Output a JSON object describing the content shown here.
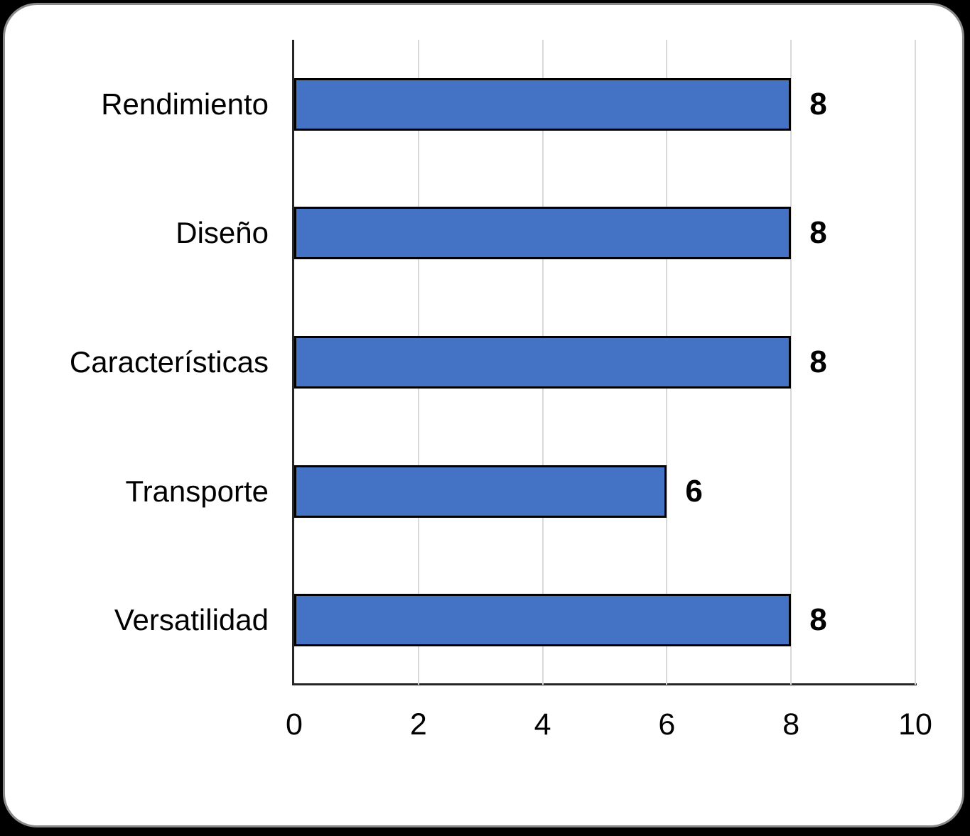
{
  "chart_data": {
    "type": "bar",
    "orientation": "horizontal",
    "title": "",
    "xlabel": "",
    "ylabel": "",
    "categories": [
      "Rendimiento",
      "Diseño",
      "Características",
      "Transporte",
      "Versatilidad"
    ],
    "values": [
      8,
      8,
      8,
      6,
      8
    ],
    "value_labels": [
      "8",
      "8",
      "8",
      "6",
      "8"
    ],
    "xlim": [
      0,
      10
    ],
    "x_ticks": [
      "0",
      "2",
      "4",
      "6",
      "8",
      "10"
    ],
    "x_tick_values": [
      0,
      2,
      4,
      6,
      8,
      10
    ],
    "grid": true,
    "legend": false,
    "bar_fill_color": "#4472C4",
    "bar_border_color": "#000000",
    "gridline_color": "#D9D9D9",
    "axis_line_color": "#262626",
    "label_color": "#000000"
  },
  "frame": {
    "page_background": "#000000",
    "card_background": "#FFFFFF",
    "card_border_color": "#8A8A8A"
  }
}
